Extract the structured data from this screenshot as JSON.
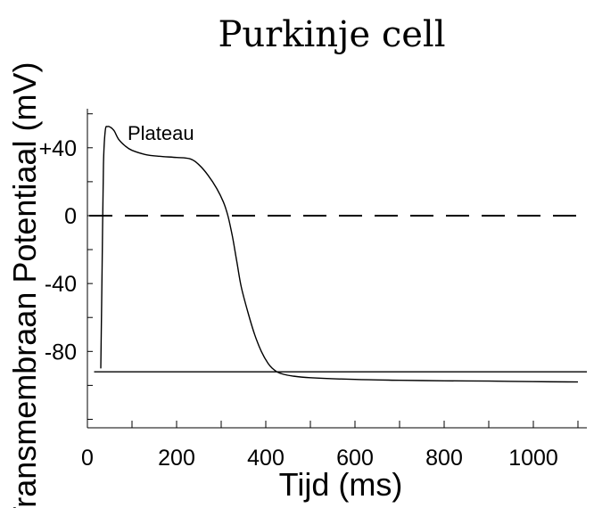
{
  "chart_data": {
    "type": "line",
    "title": "Purkinje cell",
    "xlabel": "Tijd (ms)",
    "ylabel": "Transmembraan Potentiaal (mV)",
    "xlim": [
      0,
      1120
    ],
    "ylim": [
      -125,
      63
    ],
    "x_ticks": [
      0,
      200,
      400,
      600,
      800,
      1000
    ],
    "x_tick_labels": [
      "0",
      "200",
      "400",
      "600",
      "800",
      "1000"
    ],
    "y_ticks": [
      40,
      0,
      -40,
      -80
    ],
    "y_tick_labels": [
      "+40",
      "0",
      "-40",
      "-80"
    ],
    "grid": false,
    "annotations": [
      {
        "text": "Plateau",
        "x": 90,
        "y": 50
      }
    ],
    "series": [
      {
        "x": [
          30,
          33,
          36,
          40,
          45,
          52,
          60,
          70,
          85,
          100,
          130,
          160,
          200,
          230,
          250,
          270,
          290,
          305,
          315,
          325,
          335,
          345,
          360,
          375,
          390,
          405,
          415,
          425,
          440,
          460,
          500,
          600,
          700,
          800,
          900,
          1000,
          1100
        ],
        "y": [
          -90,
          -30,
          30,
          50,
          52.5,
          52,
          50,
          45,
          41,
          38.5,
          36,
          35,
          34.3,
          33.5,
          30,
          24,
          16,
          8,
          0,
          -12,
          -27,
          -42,
          -57,
          -70,
          -80,
          -87,
          -90,
          -92,
          -93.5,
          -94.5,
          -95.5,
          -96.5,
          -97,
          -97.3,
          -97.5,
          -97.8,
          -98
        ]
      }
    ],
    "reference_lines": [
      {
        "style": "dashed",
        "y": 0
      },
      {
        "style": "solid",
        "y": -92
      }
    ]
  }
}
